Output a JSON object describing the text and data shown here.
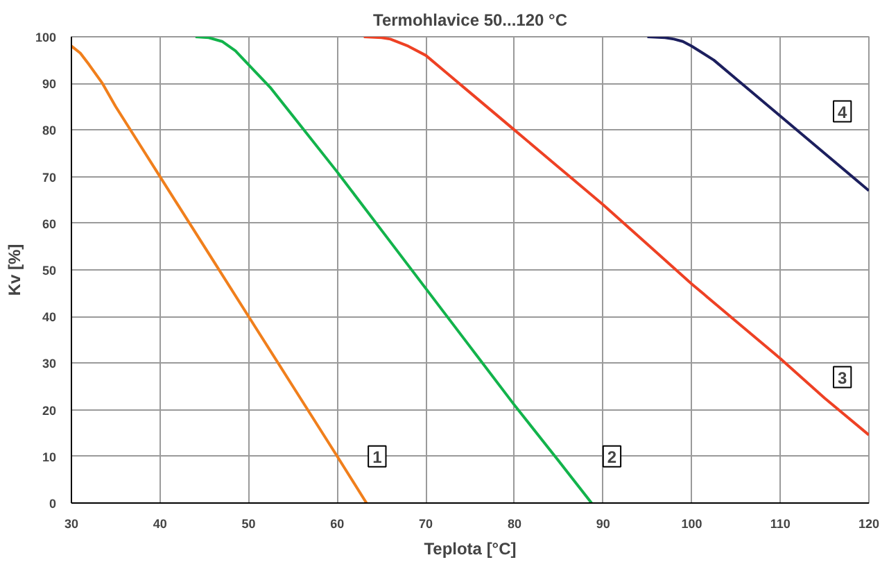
{
  "chart_data": {
    "type": "line",
    "title": "Termohlavice 50...120 °C",
    "xlabel": "Teplota [°C]",
    "ylabel": "Kv [%]",
    "xlim": [
      30,
      120
    ],
    "ylim": [
      0,
      100
    ],
    "xticks": [
      30,
      40,
      50,
      60,
      70,
      80,
      90,
      100,
      110,
      120
    ],
    "yticks": [
      0,
      10,
      20,
      30,
      40,
      50,
      60,
      70,
      80,
      90,
      100
    ],
    "grid": true,
    "series": [
      {
        "color": "#f07f1c",
        "x": [
          30,
          31,
          32,
          33.5,
          35,
          38,
          40,
          45,
          50,
          55,
          60,
          63.3
        ],
        "values": [
          98,
          96.5,
          94,
          90,
          85,
          76,
          70,
          55,
          40,
          25,
          10,
          0
        ]
      },
      {
        "color": "#12b34b",
        "x": [
          44,
          45.5,
          47,
          48.5,
          50,
          52.5,
          55,
          60,
          65,
          70,
          75,
          80,
          85,
          88.7
        ],
        "values": [
          100,
          99.8,
          99,
          97,
          94,
          89,
          83,
          71,
          58.5,
          46,
          33.5,
          21,
          9,
          0
        ]
      },
      {
        "color": "#ee4124",
        "x": [
          63,
          65,
          66,
          68,
          70,
          72.5,
          75,
          80,
          85,
          90,
          95,
          100,
          105,
          110,
          115,
          120
        ],
        "values": [
          100,
          99.8,
          99.5,
          98,
          96,
          92,
          88,
          80,
          72,
          64,
          55.5,
          47,
          39,
          31,
          22.5,
          14.6
        ]
      },
      {
        "color": "#1c1f5e",
        "x": [
          95,
          97,
          98,
          99,
          100,
          102.5,
          105,
          110,
          115,
          120
        ],
        "values": [
          100,
          99.8,
          99.5,
          99,
          98,
          95,
          91,
          83,
          75,
          67
        ]
      }
    ],
    "annotations": [
      {
        "text": "1",
        "x": 64.5,
        "y": 10
      },
      {
        "text": "2",
        "x": 91,
        "y": 10
      },
      {
        "text": "3",
        "x": 117,
        "y": 27
      },
      {
        "text": "4",
        "x": 117,
        "y": 84
      }
    ]
  }
}
